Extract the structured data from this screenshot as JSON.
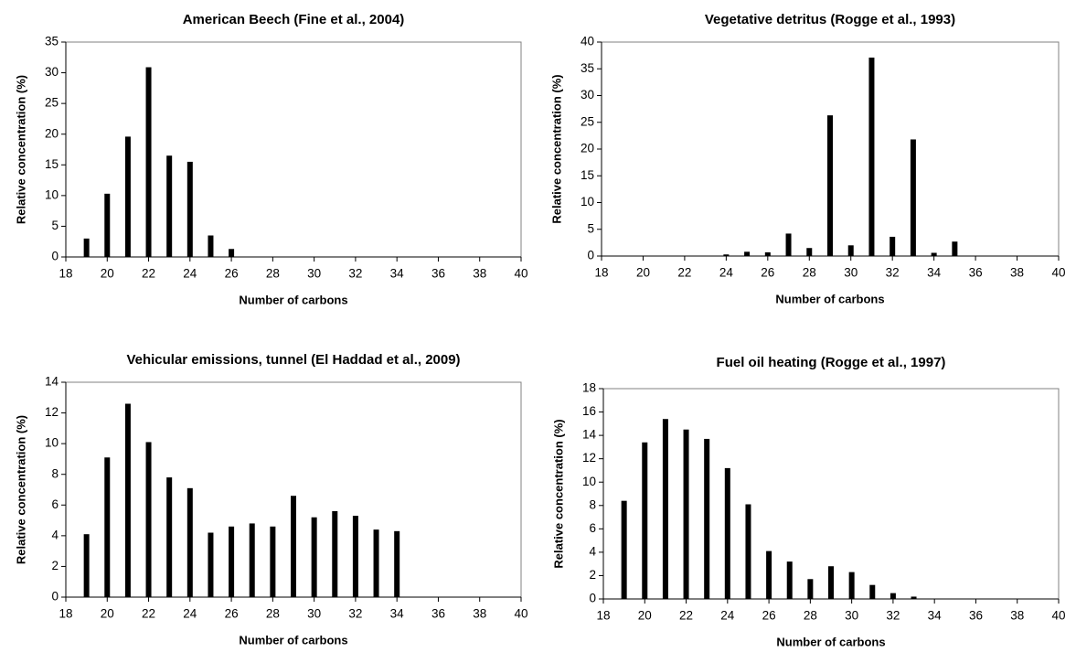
{
  "chart_data": [
    {
      "type": "bar",
      "title": "American Beech (Fine et al., 2004)",
      "xlabel": "Number of carbons",
      "ylabel": "Relative concentration (%)",
      "xlim": [
        18,
        40
      ],
      "ylim": [
        0,
        35
      ],
      "xticks": [
        "18",
        "20",
        "22",
        "24",
        "26",
        "28",
        "30",
        "32",
        "34",
        "36",
        "38",
        "40"
      ],
      "yticks": [
        "0",
        "5",
        "10",
        "15",
        "20",
        "25",
        "30",
        "35"
      ],
      "x": [
        19,
        20,
        21,
        22,
        23,
        24,
        25,
        26,
        27,
        28,
        29,
        30,
        31,
        32,
        33,
        34,
        35,
        36,
        37,
        38,
        39
      ],
      "values": [
        3.0,
        10.3,
        19.6,
        30.9,
        16.5,
        15.5,
        3.5,
        1.3,
        0,
        0,
        0,
        0,
        0,
        0,
        0,
        0,
        0,
        0,
        0,
        0,
        0
      ]
    },
    {
      "type": "bar",
      "title": "Vegetative detritus (Rogge et al., 1993)",
      "xlabel": "Number of carbons",
      "ylabel": "Relative concentration (%)",
      "xlim": [
        18,
        40
      ],
      "ylim": [
        0,
        40
      ],
      "xticks": [
        "18",
        "20",
        "22",
        "24",
        "26",
        "28",
        "30",
        "32",
        "34",
        "36",
        "38",
        "40"
      ],
      "yticks": [
        "0",
        "5",
        "10",
        "15",
        "20",
        "25",
        "30",
        "35",
        "40"
      ],
      "x": [
        19,
        20,
        21,
        22,
        23,
        24,
        25,
        26,
        27,
        28,
        29,
        30,
        31,
        32,
        33,
        34,
        35,
        36,
        37,
        38,
        39
      ],
      "values": [
        0,
        0,
        0,
        0,
        0,
        0.3,
        0.8,
        0.7,
        4.2,
        1.5,
        26.3,
        2.0,
        37.1,
        3.6,
        21.8,
        0.6,
        2.7,
        0,
        0,
        0,
        0
      ]
    },
    {
      "type": "bar",
      "title": "Vehicular emissions, tunnel (El Haddad et al., 2009)",
      "xlabel": "Number of carbons",
      "ylabel": "Relative concentration (%)",
      "xlim": [
        18,
        40
      ],
      "ylim": [
        0,
        14
      ],
      "xticks": [
        "18",
        "20",
        "22",
        "24",
        "26",
        "28",
        "30",
        "32",
        "34",
        "36",
        "38",
        "40"
      ],
      "yticks": [
        "0",
        "2",
        "4",
        "6",
        "8",
        "10",
        "12",
        "14"
      ],
      "x": [
        19,
        20,
        21,
        22,
        23,
        24,
        25,
        26,
        27,
        28,
        29,
        30,
        31,
        32,
        33,
        34,
        35,
        36,
        37,
        38,
        39
      ],
      "values": [
        4.1,
        9.1,
        12.6,
        10.1,
        7.8,
        7.1,
        4.2,
        4.6,
        4.8,
        4.6,
        6.6,
        5.2,
        5.6,
        5.3,
        4.4,
        4.3,
        0,
        0,
        0,
        0,
        0
      ]
    },
    {
      "type": "bar",
      "title": "Fuel oil heating (Rogge et al., 1997)",
      "xlabel": "Number of carbons",
      "ylabel": "Relative concentration (%)",
      "xlim": [
        18,
        40
      ],
      "ylim": [
        0,
        18
      ],
      "xticks": [
        "18",
        "20",
        "22",
        "24",
        "26",
        "28",
        "30",
        "32",
        "34",
        "36",
        "38",
        "40"
      ],
      "yticks": [
        "0",
        "2",
        "4",
        "6",
        "8",
        "10",
        "12",
        "14",
        "16",
        "18"
      ],
      "x": [
        19,
        20,
        21,
        22,
        23,
        24,
        25,
        26,
        27,
        28,
        29,
        30,
        31,
        32,
        33,
        34,
        35,
        36,
        37,
        38,
        39
      ],
      "values": [
        8.4,
        13.4,
        15.4,
        14.5,
        13.7,
        11.2,
        8.1,
        4.1,
        3.2,
        1.7,
        2.8,
        2.3,
        1.2,
        0.5,
        0.2,
        0,
        0,
        0,
        0,
        0,
        0
      ]
    }
  ]
}
